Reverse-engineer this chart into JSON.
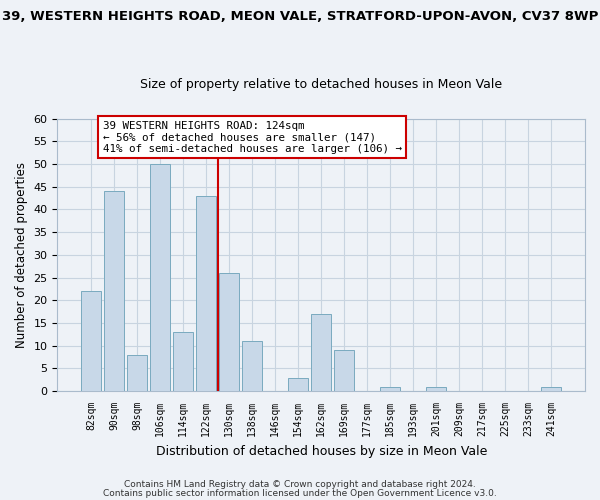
{
  "title_line1": "39, WESTERN HEIGHTS ROAD, MEON VALE, STRATFORD-UPON-AVON, CV37 8WP",
  "title_line2": "Size of property relative to detached houses in Meon Vale",
  "xlabel": "Distribution of detached houses by size in Meon Vale",
  "ylabel": "Number of detached properties",
  "bar_labels": [
    "82sqm",
    "90sqm",
    "98sqm",
    "106sqm",
    "114sqm",
    "122sqm",
    "130sqm",
    "138sqm",
    "146sqm",
    "154sqm",
    "162sqm",
    "169sqm",
    "177sqm",
    "185sqm",
    "193sqm",
    "201sqm",
    "209sqm",
    "217sqm",
    "225sqm",
    "233sqm",
    "241sqm"
  ],
  "bar_values": [
    22,
    44,
    8,
    50,
    13,
    43,
    26,
    11,
    0,
    3,
    17,
    9,
    0,
    1,
    0,
    1,
    0,
    0,
    0,
    0,
    1
  ],
  "bar_color": "#c8d8e8",
  "bar_edge_color": "#7aaabf",
  "vline_x_index": 5.5,
  "vline_color": "#cc0000",
  "ylim": [
    0,
    60
  ],
  "yticks": [
    0,
    5,
    10,
    15,
    20,
    25,
    30,
    35,
    40,
    45,
    50,
    55,
    60
  ],
  "annotation_title": "39 WESTERN HEIGHTS ROAD: 124sqm",
  "annotation_line1": "← 56% of detached houses are smaller (147)",
  "annotation_line2": "41% of semi-detached houses are larger (106) →",
  "footnote1": "Contains HM Land Registry data © Crown copyright and database right 2024.",
  "footnote2": "Contains public sector information licensed under the Open Government Licence v3.0.",
  "bg_color": "#eef2f7",
  "plot_bg_color": "#eef2f7",
  "grid_color": "#c8d4e0"
}
